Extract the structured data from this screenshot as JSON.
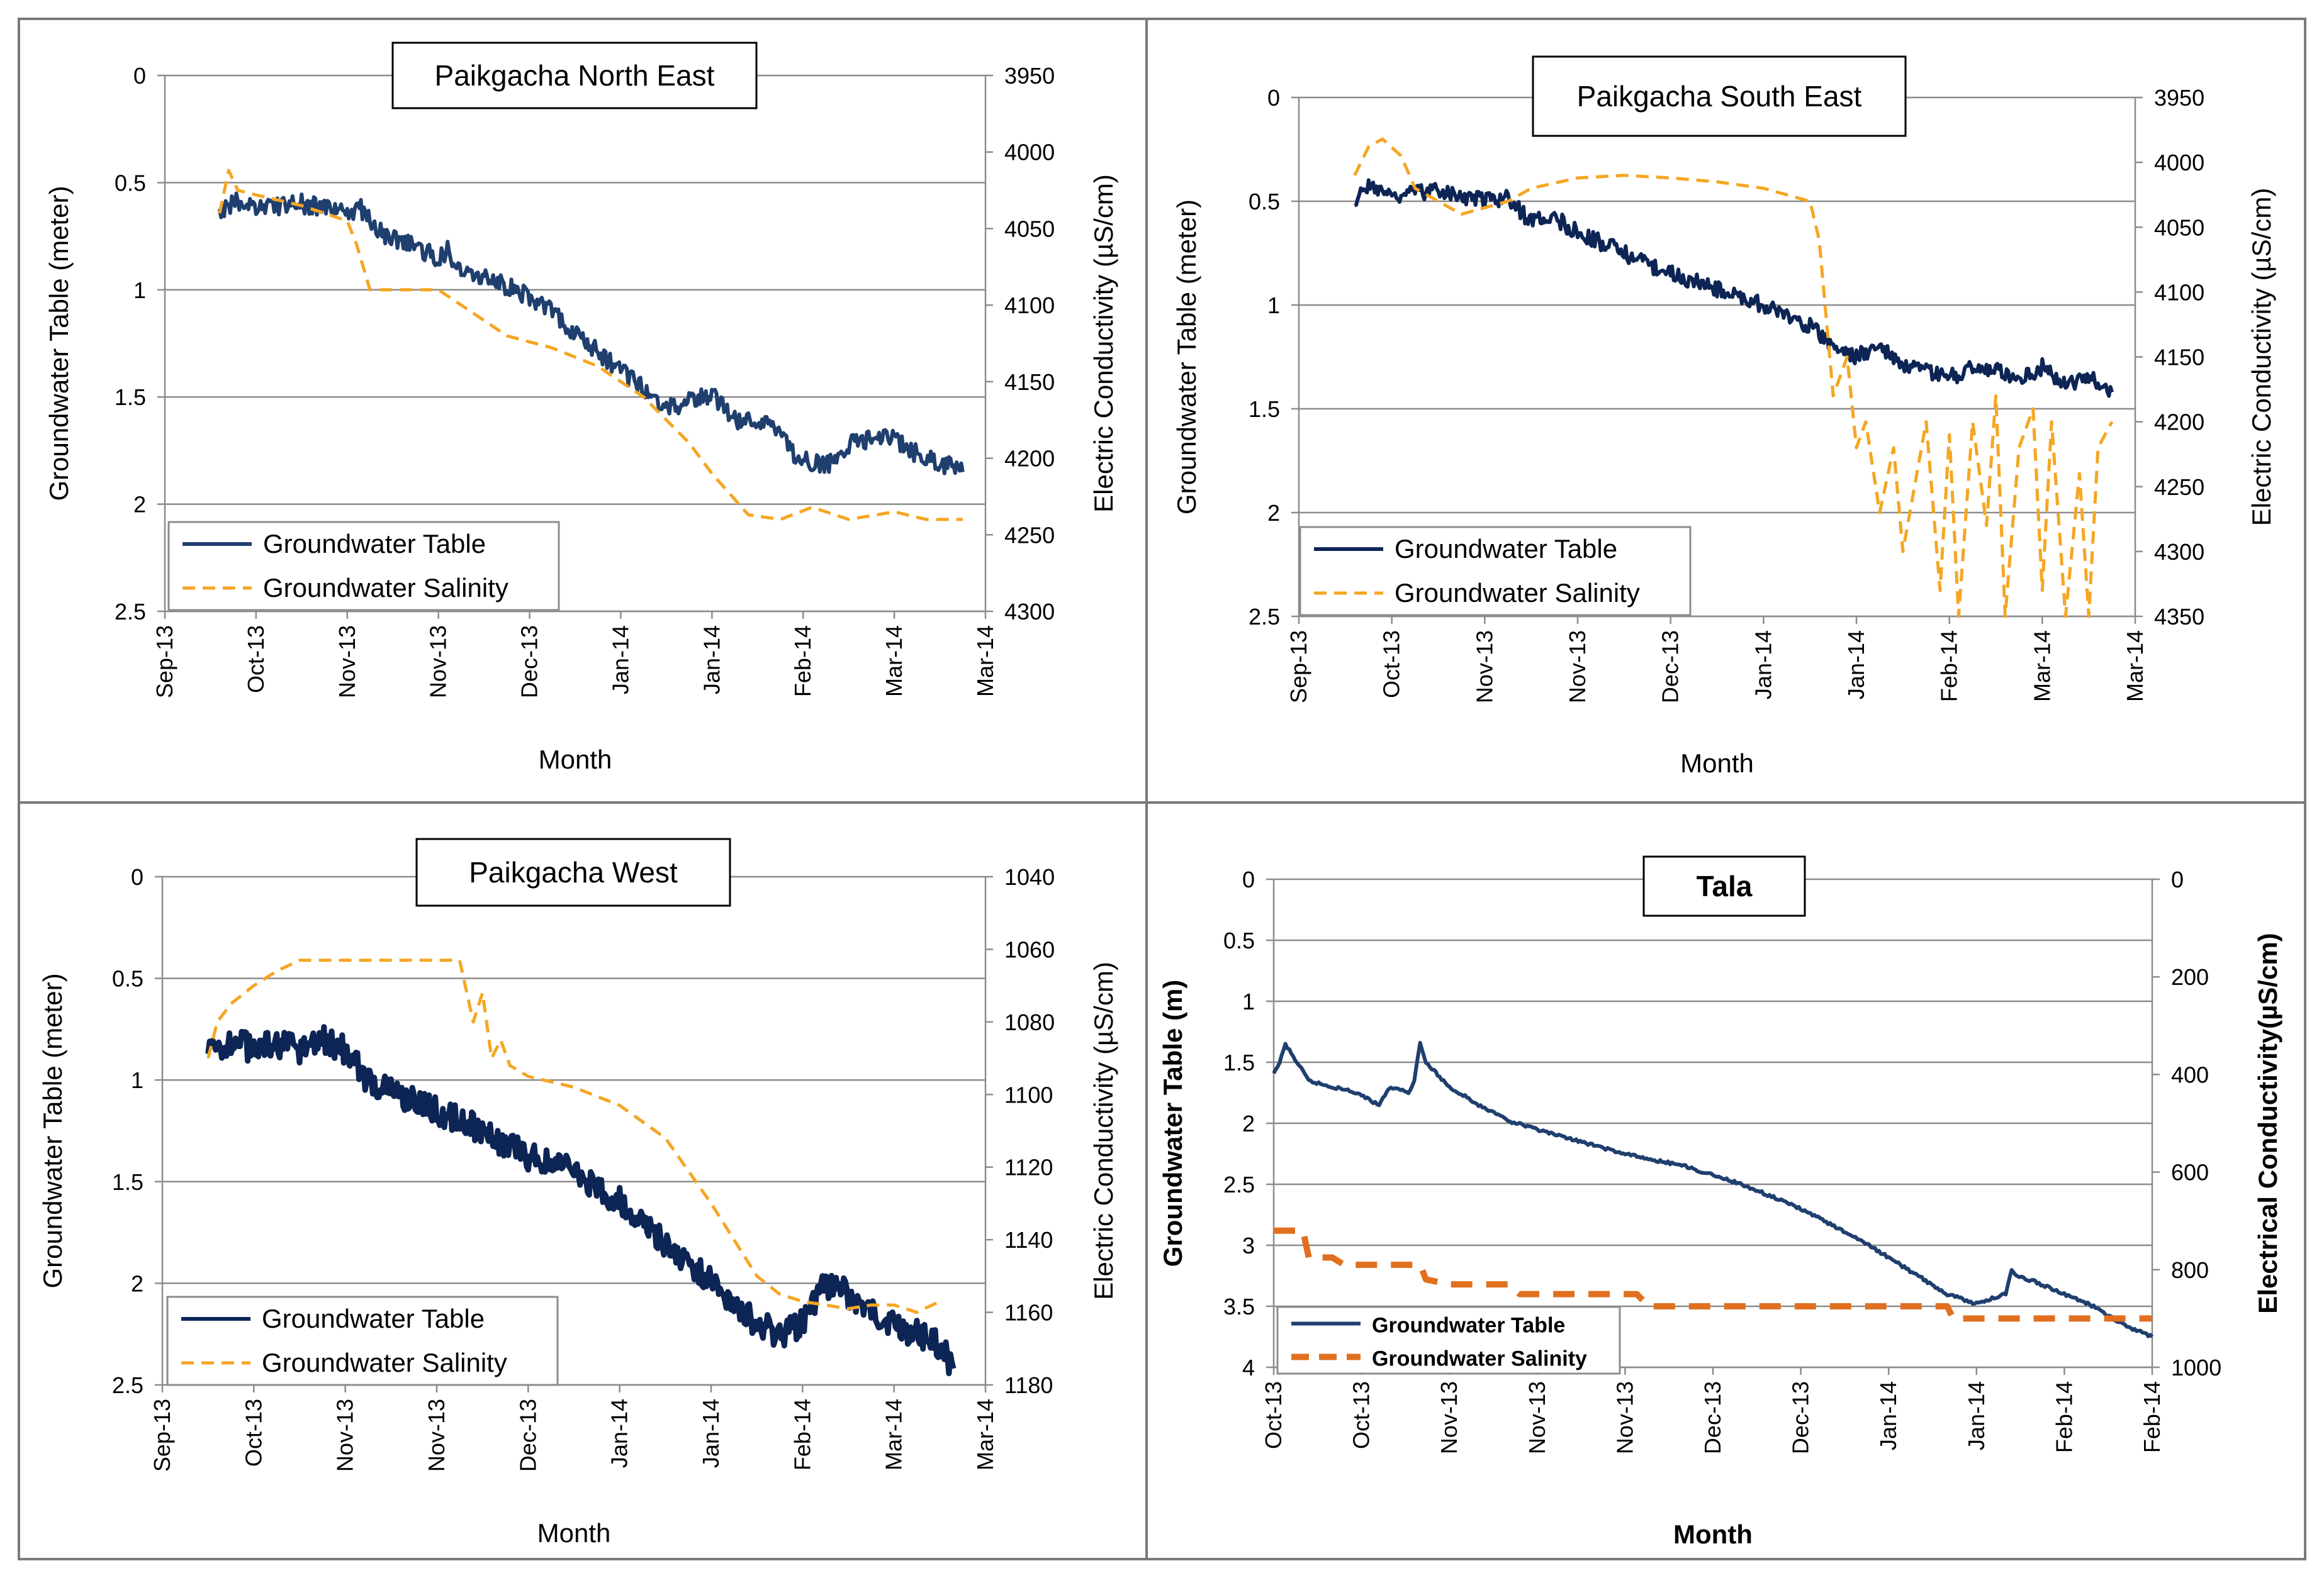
{
  "colors": {
    "groundwater": "#1f3f6e",
    "groundwater_dark": "#0d2555",
    "salinity": "#f5a623",
    "salinity_tala": "#e07020"
  },
  "chart_data": [
    {
      "type": "line",
      "title": "Paikgacha  North East",
      "xlabel": "Month",
      "ylabel": "Groundwater Table (meter)",
      "y2label": "Electric Conductivity (µS/cm)",
      "x_ticks": [
        "Sep-13",
        "Oct-13",
        "Nov-13",
        "Nov-13",
        "Dec-13",
        "Jan-14",
        "Jan-14",
        "Feb-14",
        "Mar-14",
        "Mar-14"
      ],
      "y_ticks": [
        "0",
        "0.5",
        "1",
        "1.5",
        "2",
        "2.5"
      ],
      "y2_ticks": [
        "3950",
        "4000",
        "4050",
        "4100",
        "4150",
        "4200",
        "4250",
        "4300"
      ],
      "xlim": [
        0,
        180
      ],
      "ylim": [
        0,
        2.5
      ],
      "y2lim": [
        3950,
        4300
      ],
      "series": [
        {
          "name": "Groundwater Table",
          "axis": "left",
          "style": "solid",
          "noise": 0.045,
          "x": [
            12,
            15,
            20,
            30,
            40,
            43,
            48,
            55,
            60,
            62,
            65,
            75,
            85,
            90,
            100,
            110,
            115,
            120,
            125,
            135,
            138,
            142,
            145,
            150,
            160,
            163,
            167,
            172,
            175
          ],
          "y": [
            0.66,
            0.58,
            0.62,
            0.6,
            0.64,
            0.62,
            0.75,
            0.8,
            0.85,
            0.82,
            0.9,
            0.98,
            1.1,
            1.2,
            1.38,
            1.55,
            1.52,
            1.48,
            1.6,
            1.65,
            1.78,
            1.8,
            1.82,
            1.72,
            1.68,
            1.75,
            1.78,
            1.82,
            1.85
          ]
        },
        {
          "name": "Groundwater Salinity",
          "axis": "right",
          "style": "dashed",
          "noise": 0,
          "x": [
            12,
            14,
            16,
            20,
            30,
            40,
            42,
            45,
            60,
            65,
            75,
            85,
            95,
            105,
            115,
            120,
            128,
            135,
            142,
            150,
            160,
            167,
            172,
            175
          ],
          "y": [
            4040,
            4012,
            4025,
            4028,
            4035,
            4045,
            4060,
            4090,
            4090,
            4100,
            4120,
            4128,
            4140,
            4160,
            4190,
            4210,
            4237,
            4240,
            4232,
            4240,
            4235,
            4240,
            4240,
            4240
          ]
        }
      ]
    },
    {
      "type": "line",
      "title": "Paikgacha  South East",
      "xlabel": "Month",
      "ylabel": "Groundwater Table (meter)",
      "y2label": "Electric Conductivity (µS/cm)",
      "x_ticks": [
        "Sep-13",
        "Oct-13",
        "Nov-13",
        "Nov-13",
        "Dec-13",
        "Jan-14",
        "Jan-14",
        "Feb-14",
        "Mar-14",
        "Mar-14"
      ],
      "y_ticks": [
        "0",
        "0.5",
        "1",
        "1.5",
        "2",
        "2.5"
      ],
      "y2_ticks": [
        "3950",
        "4000",
        "4050",
        "4100",
        "4150",
        "4200",
        "4250",
        "4300",
        "4350"
      ],
      "xlim": [
        0,
        180
      ],
      "ylim": [
        0,
        2.5
      ],
      "y2lim": [
        3950,
        4350
      ],
      "series": [
        {
          "name": "Groundwater Table",
          "axis": "left",
          "style": "solid",
          "noise": 0.04,
          "x": [
            12,
            15,
            20,
            30,
            40,
            45,
            50,
            55,
            60,
            70,
            80,
            90,
            100,
            105,
            110,
            115,
            120,
            125,
            130,
            140,
            145,
            150,
            155,
            160,
            165,
            170,
            175
          ],
          "y": [
            0.5,
            0.42,
            0.48,
            0.45,
            0.5,
            0.48,
            0.6,
            0.58,
            0.65,
            0.75,
            0.85,
            0.92,
            1.0,
            1.05,
            1.1,
            1.2,
            1.25,
            1.2,
            1.3,
            1.35,
            1.3,
            1.32,
            1.35,
            1.3,
            1.38,
            1.35,
            1.42
          ]
        },
        {
          "name": "Groundwater Salinity",
          "axis": "right",
          "style": "dashed",
          "noise": 0,
          "x": [
            12,
            15,
            18,
            22,
            25,
            30,
            35,
            40,
            45,
            50,
            60,
            70,
            80,
            90,
            100,
            105,
            110,
            112,
            115,
            118,
            120,
            122,
            125,
            128,
            130,
            133,
            135,
            138,
            140,
            142,
            145,
            148,
            150,
            152,
            155,
            158,
            160,
            162,
            165,
            168,
            170,
            172,
            175
          ],
          "y": [
            4010,
            3988,
            3982,
            3995,
            4020,
            4030,
            4040,
            4035,
            4030,
            4020,
            4012,
            4010,
            4012,
            4015,
            4020,
            4025,
            4030,
            4060,
            4180,
            4150,
            4220,
            4200,
            4270,
            4220,
            4300,
            4240,
            4200,
            4330,
            4210,
            4350,
            4200,
            4280,
            4180,
            4350,
            4220,
            4190,
            4330,
            4200,
            4350,
            4240,
            4350,
            4220,
            4200
          ]
        }
      ]
    },
    {
      "type": "line",
      "title": "Paikgacha West",
      "xlabel": "Month",
      "ylabel": "Groundwater Table (meter)",
      "y2label": "Electric Conductivity (µS/cm)",
      "x_ticks": [
        "Sep-13",
        "Oct-13",
        "Nov-13",
        "Nov-13",
        "Dec-13",
        "Jan-14",
        "Jan-14",
        "Feb-14",
        "Mar-14",
        "Mar-14"
      ],
      "y_ticks": [
        "0",
        "0.5",
        "1",
        "1.5",
        "2",
        "2.5"
      ],
      "y2_ticks": [
        "1040",
        "1060",
        "1080",
        "1100",
        "1120",
        "1140",
        "1160",
        "1180"
      ],
      "xlim": [
        0,
        180
      ],
      "ylim": [
        0,
        2.5
      ],
      "y2lim": [
        1040,
        1180
      ],
      "series": [
        {
          "name": "Groundwater Table",
          "axis": "left",
          "style": "solid",
          "noise": 0.07,
          "x": [
            10,
            15,
            20,
            25,
            30,
            35,
            40,
            45,
            50,
            60,
            70,
            80,
            90,
            100,
            110,
            115,
            120,
            125,
            130,
            135,
            140,
            145,
            150,
            152,
            155,
            160,
            165,
            170,
            173
          ],
          "y": [
            0.88,
            0.8,
            0.85,
            0.82,
            0.85,
            0.8,
            0.85,
            1.0,
            1.05,
            1.15,
            1.25,
            1.38,
            1.45,
            1.6,
            1.8,
            1.9,
            2.0,
            2.1,
            2.2,
            2.25,
            2.2,
            2.0,
            2.05,
            2.1,
            2.15,
            2.2,
            2.25,
            2.3,
            2.42
          ]
        },
        {
          "name": "Groundwater Salinity",
          "axis": "right",
          "style": "dashed",
          "noise": 0,
          "x": [
            10,
            12,
            15,
            20,
            25,
            30,
            35,
            40,
            50,
            60,
            65,
            68,
            70,
            72,
            74,
            76,
            80,
            90,
            100,
            110,
            120,
            125,
            130,
            135,
            140,
            145,
            150,
            155,
            160,
            165,
            170
          ],
          "y": [
            1090,
            1080,
            1075,
            1070,
            1066,
            1063,
            1063,
            1063,
            1063,
            1063,
            1063,
            1080,
            1072,
            1090,
            1085,
            1092,
            1095,
            1098,
            1103,
            1112,
            1130,
            1140,
            1150,
            1155,
            1157,
            1158,
            1159,
            1158,
            1158,
            1160,
            1157
          ]
        }
      ]
    },
    {
      "type": "line",
      "title": "Tala",
      "xlabel": "Month",
      "ylabel": "Groundwater Table (m)",
      "y2label": "Electrical Conductivity(µS/cm)",
      "x_ticks": [
        "Oct-13",
        "Oct-13",
        "Nov-13",
        "Nov-13",
        "Nov-13",
        "Dec-13",
        "Dec-13",
        "Jan-14",
        "Jan-14",
        "Feb-14",
        "Feb-14"
      ],
      "y_ticks": [
        "0",
        "0.5",
        "1",
        "1.5",
        "2",
        "2.5",
        "3",
        "3.5",
        "4"
      ],
      "y2_ticks": [
        "0",
        "200",
        "400",
        "600",
        "800",
        "1000"
      ],
      "xlim": [
        0,
        150
      ],
      "ylim": [
        0,
        4
      ],
      "y2lim": [
        0,
        1000
      ],
      "series": [
        {
          "name": "Groundwater Table",
          "axis": "left",
          "style": "solid",
          "noise": 0.012,
          "x": [
            0,
            1,
            2,
            4,
            6,
            10,
            14,
            18,
            20,
            21,
            23,
            24,
            25,
            26,
            28,
            30,
            35,
            40,
            45,
            50,
            60,
            70,
            80,
            90,
            100,
            110,
            115,
            120,
            125,
            126,
            127,
            130,
            135,
            140,
            145,
            150
          ],
          "y": [
            1.6,
            1.5,
            1.35,
            1.5,
            1.65,
            1.7,
            1.75,
            1.85,
            1.7,
            1.72,
            1.75,
            1.65,
            1.35,
            1.5,
            1.6,
            1.7,
            1.85,
            1.98,
            2.05,
            2.12,
            2.25,
            2.35,
            2.5,
            2.7,
            2.95,
            3.25,
            3.4,
            3.48,
            3.4,
            3.2,
            3.25,
            3.3,
            3.4,
            3.5,
            3.65,
            3.75
          ]
        },
        {
          "name": "Groundwater Salinity",
          "axis": "right",
          "style": "dashed",
          "noise": 0,
          "x": [
            0,
            5,
            6,
            10,
            12,
            20,
            25,
            26,
            30,
            40,
            42,
            50,
            62,
            64,
            80,
            100,
            115,
            116,
            150
          ],
          "y": [
            720,
            720,
            775,
            775,
            790,
            790,
            790,
            820,
            830,
            830,
            850,
            850,
            850,
            875,
            875,
            875,
            875,
            900,
            900
          ]
        }
      ]
    }
  ]
}
